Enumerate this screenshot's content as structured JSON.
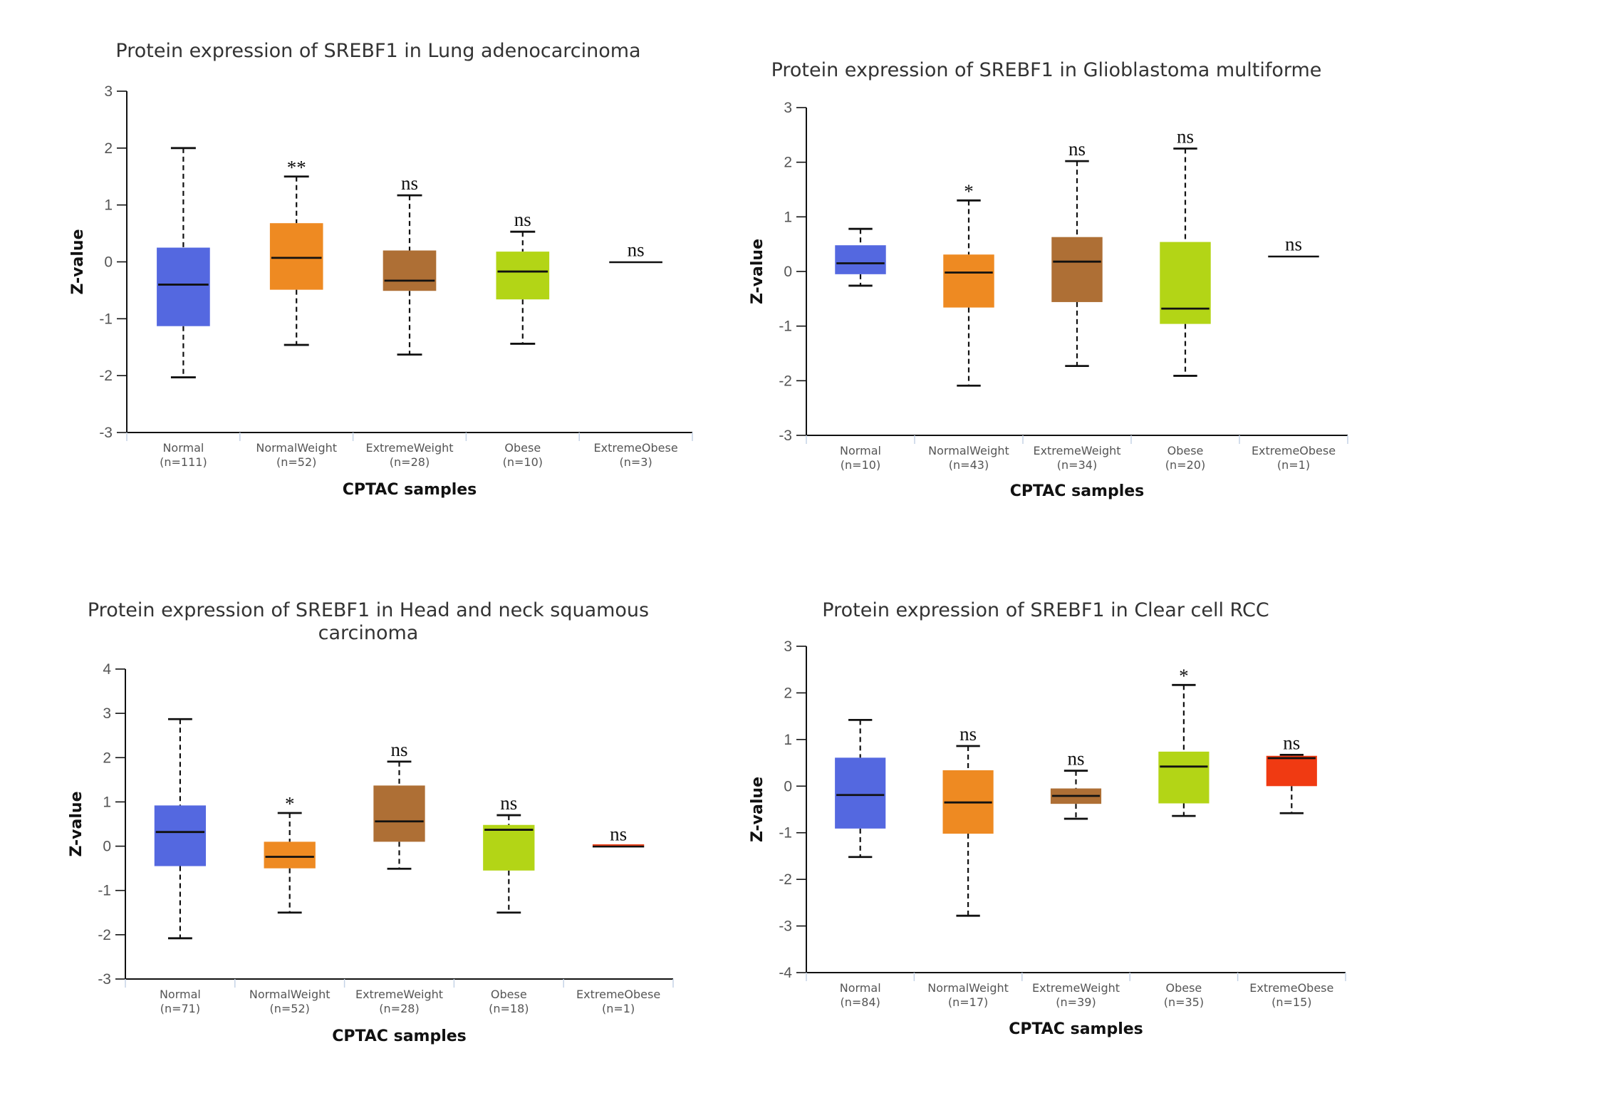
{
  "chart_data": [
    {
      "type": "box",
      "title": [
        "Protein expression of SREBF1 in Lung adenocarcinoma"
      ],
      "xlabel": "CPTAC samples",
      "ylabel": "Z-value",
      "ylim": [
        -3,
        3
      ],
      "yticks": [
        3,
        2,
        1,
        0,
        -1,
        -2,
        -3
      ],
      "grid": false,
      "categories": [
        {
          "name": "Normal",
          "n": "(n=111)",
          "color": "#5468e0",
          "whisker_low": -2.03,
          "q1": -1.13,
          "median": -0.4,
          "q3": 0.25,
          "whisker_high": 2.0,
          "sig": ""
        },
        {
          "name": "NormalWeight",
          "n": "(n=52)",
          "color": "#ee8a22",
          "whisker_low": -1.46,
          "q1": -0.49,
          "median": 0.07,
          "q3": 0.68,
          "whisker_high": 1.5,
          "sig": "**"
        },
        {
          "name": "ExtremeWeight",
          "n": "(n=28)",
          "color": "#ae6f35",
          "whisker_low": -1.63,
          "q1": -0.51,
          "median": -0.33,
          "q3": 0.2,
          "whisker_high": 1.17,
          "sig": "ns"
        },
        {
          "name": "Obese",
          "n": "(n=10)",
          "color": "#b3d516",
          "whisker_low": -1.44,
          "q1": -0.66,
          "median": -0.17,
          "q3": 0.18,
          "whisker_high": 0.53,
          "sig": "ns"
        },
        {
          "name": "ExtremeObese",
          "n": "(n=3)",
          "color": "#111111",
          "whisker_low": 0.0,
          "q1": 0.0,
          "median": 0.0,
          "q3": 0.0,
          "whisker_high": 0.0,
          "sig": "ns"
        }
      ]
    },
    {
      "type": "box",
      "title": [
        "Protein expression of SREBF1 in Glioblastoma multiforme"
      ],
      "xlabel": "CPTAC samples",
      "ylabel": "Z-value",
      "ylim": [
        -3,
        3
      ],
      "yticks": [
        3,
        2,
        1,
        0,
        -1,
        -2,
        -3
      ],
      "grid": false,
      "categories": [
        {
          "name": "Normal",
          "n": "(n=10)",
          "color": "#5468e0",
          "whisker_low": -0.26,
          "q1": -0.05,
          "median": 0.15,
          "q3": 0.48,
          "whisker_high": 0.78,
          "sig": ""
        },
        {
          "name": "NormalWeight",
          "n": "(n=43)",
          "color": "#ee8a22",
          "whisker_low": -2.09,
          "q1": -0.66,
          "median": -0.02,
          "q3": 0.31,
          "whisker_high": 1.3,
          "sig": "*"
        },
        {
          "name": "ExtremeWeight",
          "n": "(n=34)",
          "color": "#ae6f35",
          "whisker_low": -1.73,
          "q1": -0.56,
          "median": 0.18,
          "q3": 0.63,
          "whisker_high": 2.02,
          "sig": "ns"
        },
        {
          "name": "Obese",
          "n": "(n=20)",
          "color": "#b3d516",
          "whisker_low": -1.91,
          "q1": -0.96,
          "median": -0.68,
          "q3": 0.54,
          "whisker_high": 2.25,
          "sig": "ns"
        },
        {
          "name": "ExtremeObese",
          "n": "(n=1)",
          "color": "#111111",
          "whisker_low": 0.28,
          "q1": 0.28,
          "median": 0.28,
          "q3": 0.28,
          "whisker_high": 0.28,
          "sig": "ns"
        }
      ]
    },
    {
      "type": "box",
      "title": [
        "Protein expression of SREBF1 in Head and neck squamous",
        "carcinoma"
      ],
      "xlabel": "CPTAC samples",
      "ylabel": "Z-value",
      "ylim": [
        -3,
        4
      ],
      "yticks": [
        4,
        3,
        2,
        1,
        0,
        -1,
        -2,
        -3
      ],
      "grid": false,
      "categories": [
        {
          "name": "Normal",
          "n": "(n=71)",
          "color": "#5468e0",
          "whisker_low": -2.08,
          "q1": -0.45,
          "median": 0.32,
          "q3": 0.92,
          "whisker_high": 2.87,
          "sig": ""
        },
        {
          "name": "NormalWeight",
          "n": "(n=52)",
          "color": "#ee8a22",
          "whisker_low": -1.5,
          "q1": -0.5,
          "median": -0.24,
          "q3": 0.1,
          "whisker_high": 0.75,
          "sig": "*"
        },
        {
          "name": "ExtremeWeight",
          "n": "(n=28)",
          "color": "#ae6f35",
          "whisker_low": -0.51,
          "q1": 0.1,
          "median": 0.56,
          "q3": 1.37,
          "whisker_high": 1.91,
          "sig": "ns"
        },
        {
          "name": "Obese",
          "n": "(n=18)",
          "color": "#b3d516",
          "whisker_low": -1.5,
          "q1": -0.55,
          "median": 0.37,
          "q3": 0.48,
          "whisker_high": 0.7,
          "sig": "ns"
        },
        {
          "name": "ExtremeObese",
          "n": "(n=1)",
          "color": "#e8401a",
          "whisker_low": 0.0,
          "q1": 0.0,
          "median": 0.0,
          "q3": 0.0,
          "whisker_high": 0.0,
          "sig": "ns"
        }
      ]
    },
    {
      "type": "box",
      "title": [
        "Protein expression of SREBF1 in Clear cell RCC"
      ],
      "xlabel": "CPTAC samples",
      "ylabel": "Z-value",
      "ylim": [
        -4,
        3
      ],
      "yticks": [
        3,
        2,
        1,
        0,
        -1,
        -2,
        -3,
        -4
      ],
      "grid": false,
      "categories": [
        {
          "name": "Normal",
          "n": "(n=84)",
          "color": "#5468e0",
          "whisker_low": -1.52,
          "q1": -0.91,
          "median": -0.19,
          "q3": 0.61,
          "whisker_high": 1.42,
          "sig": ""
        },
        {
          "name": "NormalWeight",
          "n": "(n=17)",
          "color": "#ee8a22",
          "whisker_low": -2.78,
          "q1": -1.02,
          "median": -0.35,
          "q3": 0.34,
          "whisker_high": 0.86,
          "sig": "ns"
        },
        {
          "name": "ExtremeWeight",
          "n": "(n=39)",
          "color": "#ae6f35",
          "whisker_low": -0.7,
          "q1": -0.38,
          "median": -0.21,
          "q3": -0.05,
          "whisker_high": 0.33,
          "sig": "ns"
        },
        {
          "name": "Obese",
          "n": "(n=35)",
          "color": "#b3d516",
          "whisker_low": -0.64,
          "q1": -0.37,
          "median": 0.42,
          "q3": 0.74,
          "whisker_high": 2.17,
          "sig": "*"
        },
        {
          "name": "ExtremeObese",
          "n": "(n=15)",
          "color": "#f03a12",
          "whisker_low": -0.58,
          "q1": 0.0,
          "median": 0.6,
          "q3": 0.65,
          "whisker_high": 0.67,
          "sig": "ns"
        }
      ]
    }
  ]
}
